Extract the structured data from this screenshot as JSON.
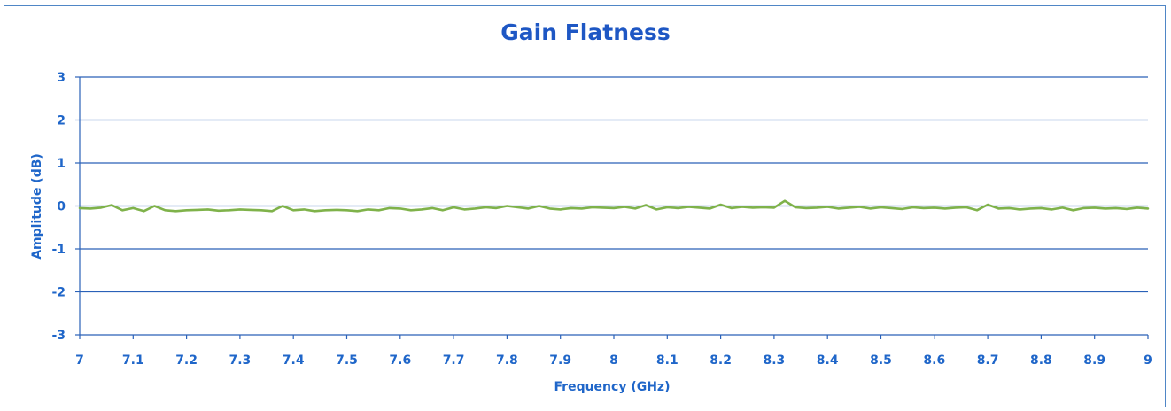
{
  "chart_data": {
    "type": "line",
    "title": "Gain Flatness",
    "xlabel": "Frequency (GHz)",
    "ylabel": "Amplitude (dB)",
    "xlim": [
      7,
      9
    ],
    "ylim": [
      -3,
      3
    ],
    "xticks": [
      "7",
      "7.1",
      "7.2",
      "7.3",
      "7.4",
      "7.5",
      "7.6",
      "7.7",
      "7.8",
      "7.9",
      "8",
      "8.1",
      "8.2",
      "8.3",
      "8.4",
      "8.5",
      "8.6",
      "8.7",
      "8.8",
      "8.9",
      "9"
    ],
    "yticks": [
      "3",
      "2",
      "1",
      "0",
      "-1",
      "-2",
      "-3"
    ],
    "grid": true,
    "series": [
      {
        "color": "#7fb24a",
        "x": [
          7.0,
          7.02,
          7.04,
          7.06,
          7.08,
          7.1,
          7.12,
          7.14,
          7.16,
          7.18,
          7.2,
          7.22,
          7.24,
          7.26,
          7.28,
          7.3,
          7.32,
          7.34,
          7.36,
          7.38,
          7.4,
          7.42,
          7.44,
          7.46,
          7.48,
          7.5,
          7.52,
          7.54,
          7.56,
          7.58,
          7.6,
          7.62,
          7.64,
          7.66,
          7.68,
          7.7,
          7.72,
          7.74,
          7.76,
          7.78,
          7.8,
          7.82,
          7.84,
          7.86,
          7.88,
          7.9,
          7.92,
          7.94,
          7.96,
          7.98,
          8.0,
          8.02,
          8.04,
          8.06,
          8.08,
          8.1,
          8.12,
          8.14,
          8.16,
          8.18,
          8.2,
          8.22,
          8.24,
          8.26,
          8.28,
          8.3,
          8.32,
          8.34,
          8.36,
          8.38,
          8.4,
          8.42,
          8.44,
          8.46,
          8.48,
          8.5,
          8.52,
          8.54,
          8.56,
          8.58,
          8.6,
          8.62,
          8.64,
          8.66,
          8.68,
          8.7,
          8.72,
          8.74,
          8.76,
          8.78,
          8.8,
          8.82,
          8.84,
          8.86,
          8.88,
          8.9,
          8.92,
          8.94,
          8.96,
          8.98,
          9.0
        ],
        "y": [
          -0.05,
          -0.06,
          -0.04,
          0.02,
          -0.1,
          -0.05,
          -0.12,
          0.0,
          -0.1,
          -0.12,
          -0.1,
          -0.09,
          -0.08,
          -0.11,
          -0.1,
          -0.08,
          -0.09,
          -0.1,
          -0.12,
          0.0,
          -0.1,
          -0.08,
          -0.12,
          -0.1,
          -0.09,
          -0.1,
          -0.12,
          -0.08,
          -0.1,
          -0.05,
          -0.06,
          -0.1,
          -0.08,
          -0.05,
          -0.1,
          -0.03,
          -0.08,
          -0.06,
          -0.03,
          -0.05,
          0.0,
          -0.03,
          -0.06,
          0.0,
          -0.06,
          -0.08,
          -0.05,
          -0.06,
          -0.03,
          -0.04,
          -0.05,
          -0.02,
          -0.06,
          0.02,
          -0.08,
          -0.03,
          -0.05,
          -0.02,
          -0.04,
          -0.06,
          0.03,
          -0.05,
          -0.02,
          -0.04,
          -0.03,
          -0.04,
          0.12,
          -0.03,
          -0.05,
          -0.04,
          -0.02,
          -0.06,
          -0.04,
          -0.02,
          -0.06,
          -0.03,
          -0.05,
          -0.07,
          -0.03,
          -0.05,
          -0.04,
          -0.06,
          -0.04,
          -0.03,
          -0.1,
          0.03,
          -0.06,
          -0.05,
          -0.08,
          -0.06,
          -0.05,
          -0.08,
          -0.04,
          -0.1,
          -0.05,
          -0.04,
          -0.06,
          -0.05,
          -0.07,
          -0.04,
          -0.06
        ]
      }
    ]
  }
}
